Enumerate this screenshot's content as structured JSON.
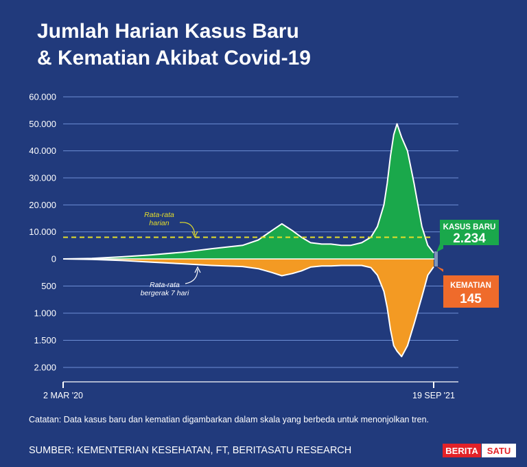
{
  "page": {
    "title_line1": "Jumlah Harian Kasus Baru",
    "title_line2": "& Kematian Akibat Covid-19",
    "note": "Catatan: Data kasus baru dan kematian digambarkan dalam skala yang berbeda untuk menonjolkan tren.",
    "source": "SUMBER: KEMENTERIAN KESEHATAN, FT, BERITASATU RESEARCH",
    "logo_left": "BERITA",
    "logo_right": "SATU",
    "colors": {
      "background": "#213a7c",
      "cases_fill": "#1aa84b",
      "deaths_fill": "#f39a23",
      "moving_avg_line": "#ffffff",
      "daily_avg_line": "#e6df2a",
      "gridline": "#6e8fd6",
      "deaths_label_bg": "#ef6b2b",
      "logo_red": "#e32228"
    }
  },
  "chart_data": {
    "type": "area",
    "x_start_label": "2 MAR '20",
    "x_end_label": "19 SEP '21",
    "x": [
      "2020-03-02",
      "2020-04-15",
      "2020-06-01",
      "2020-07-15",
      "2020-09-01",
      "2020-10-15",
      "2020-12-01",
      "2020-12-25",
      "2021-01-15",
      "2021-01-30",
      "2021-02-15",
      "2021-03-01",
      "2021-03-15",
      "2021-04-01",
      "2021-04-15",
      "2021-05-01",
      "2021-05-15",
      "2021-06-01",
      "2021-06-15",
      "2021-06-25",
      "2021-07-05",
      "2021-07-10",
      "2021-07-15",
      "2021-07-20",
      "2021-07-25",
      "2021-08-01",
      "2021-08-10",
      "2021-08-20",
      "2021-09-01",
      "2021-09-10",
      "2021-09-19"
    ],
    "cases_axis": {
      "ticks": [
        0,
        10000,
        20000,
        30000,
        40000,
        50000,
        60000
      ],
      "tick_labels": [
        "0",
        "10.000",
        "20.000",
        "30.000",
        "40.000",
        "50.000",
        "60.000"
      ],
      "ylim": [
        0,
        60000
      ]
    },
    "deaths_axis": {
      "ticks": [
        500,
        1000,
        1500,
        2000
      ],
      "tick_labels": [
        "500",
        "1.000",
        "1.500",
        "2.000"
      ],
      "ylim": [
        0,
        2000
      ]
    },
    "series": [
      {
        "values": [
          0,
          200,
          800,
          1500,
          2500,
          3800,
          5000,
          7000,
          10500,
          13000,
          10500,
          8000,
          6000,
          5500,
          5500,
          5000,
          5000,
          6000,
          8000,
          12000,
          20000,
          28000,
          38000,
          46000,
          50000,
          45000,
          40000,
          28000,
          12000,
          5000,
          2234
        ]
      },
      {
        "values": [
          0,
          10,
          30,
          60,
          90,
          120,
          140,
          180,
          250,
          310,
          270,
          220,
          150,
          130,
          130,
          120,
          120,
          120,
          160,
          300,
          600,
          900,
          1300,
          1600,
          1700,
          1800,
          1600,
          1200,
          700,
          300,
          145
        ]
      }
    ],
    "annotations": {
      "daily_avg_label": "Rata-rata harian",
      "daily_avg_line1": "Rata-rata",
      "daily_avg_line2": "harian",
      "daily_avg_value": 8000,
      "moving_avg_line1": "Rata-rata",
      "moving_avg_line2": "bergerak 7 hari",
      "cases_label": "KASUS BARU",
      "cases_last_value": "2.234",
      "deaths_label": "KEMATIAN",
      "deaths_last_value": "145"
    }
  }
}
